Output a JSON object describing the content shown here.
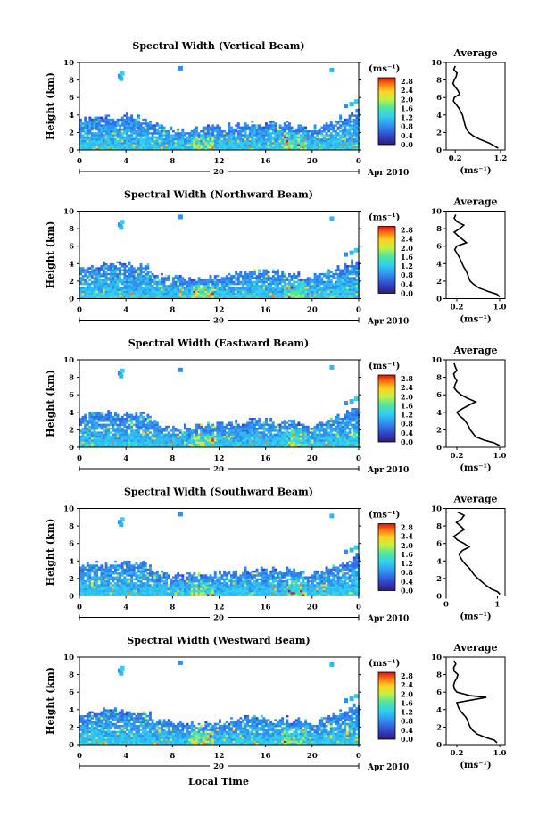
{
  "figure": {
    "xlabel": "Local Time",
    "ylabel": "Height (km)",
    "x_ticks": [
      "0",
      "4",
      "8",
      "12",
      "16",
      "20",
      "0"
    ],
    "y_ticks": [
      "0",
      "2",
      "4",
      "6",
      "8",
      "10"
    ],
    "date_day": "20",
    "date_label": "Apr 2010",
    "colorbar_unit": "(ms⁻¹)",
    "colorbar_ticks": [
      "0.0",
      "0.4",
      "0.8",
      "1.2",
      "1.6",
      "2.0",
      "2.4",
      "2.8"
    ],
    "avg_title": "Average",
    "avg_unit": "(ms⁻¹)"
  },
  "chart_data": [
    {
      "type": "heatmap",
      "title": "Spectral Width (Vertical Beam)",
      "xlabel": "",
      "ylabel": "Height (km)",
      "xlim": [
        0,
        24
      ],
      "ylim": [
        0,
        10
      ],
      "colorbar": {
        "range": [
          0.0,
          2.8
        ]
      },
      "avg_profile": {
        "ticks": [
          "0.2",
          "1.2"
        ],
        "xlim": [
          0.0,
          1.3
        ],
        "x": [
          1.15,
          1.05,
          0.95,
          0.75,
          0.6,
          0.5,
          0.45,
          0.42,
          0.4,
          0.38,
          0.36,
          0.32,
          0.28,
          0.22,
          0.16,
          0.18,
          0.3,
          0.26,
          0.2,
          0.15,
          0.18,
          0.22,
          0.24,
          0.17,
          0.2
        ],
        "y": [
          0.2,
          0.5,
          0.8,
          1.2,
          1.6,
          2.0,
          2.4,
          2.8,
          3.2,
          3.6,
          4.0,
          4.4,
          4.8,
          5.2,
          5.6,
          6.0,
          6.4,
          6.8,
          7.2,
          7.6,
          8.0,
          8.4,
          8.8,
          9.2,
          9.6
        ]
      }
    },
    {
      "type": "heatmap",
      "title": "Spectral Width (Northward Beam)",
      "xlabel": "",
      "ylabel": "Height (km)",
      "xlim": [
        0,
        24
      ],
      "ylim": [
        0,
        10
      ],
      "colorbar": {
        "range": [
          0.0,
          2.8
        ]
      },
      "avg_profile": {
        "ticks": [
          "0.2",
          "1.0"
        ],
        "xlim": [
          0.0,
          1.1
        ],
        "x": [
          1.0,
          0.95,
          0.8,
          0.62,
          0.52,
          0.45,
          0.42,
          0.4,
          0.37,
          0.33,
          0.3,
          0.27,
          0.24,
          0.2,
          0.16,
          0.2,
          0.38,
          0.3,
          0.22,
          0.15,
          0.25,
          0.33,
          0.2,
          0.15,
          0.18
        ],
        "y": [
          0.2,
          0.5,
          0.8,
          1.2,
          1.6,
          2.0,
          2.4,
          2.8,
          3.2,
          3.6,
          4.0,
          4.4,
          4.8,
          5.2,
          5.6,
          6.0,
          6.4,
          6.8,
          7.2,
          7.6,
          8.0,
          8.4,
          8.8,
          9.2,
          9.6
        ]
      }
    },
    {
      "type": "heatmap",
      "title": "Spectral Width (Eastward Beam)",
      "xlabel": "",
      "ylabel": "Height (km)",
      "xlim": [
        0,
        24
      ],
      "ylim": [
        0,
        10
      ],
      "colorbar": {
        "range": [
          0.0,
          2.8
        ]
      },
      "avg_profile": {
        "ticks": [
          "0.2",
          "1.0"
        ],
        "xlim": [
          0.0,
          1.1
        ],
        "x": [
          1.0,
          0.9,
          0.72,
          0.55,
          0.5,
          0.45,
          0.42,
          0.38,
          0.33,
          0.25,
          0.2,
          0.3,
          0.42,
          0.55,
          0.4,
          0.28,
          0.2,
          0.15,
          0.17,
          0.2,
          0.16,
          0.14,
          0.2,
          0.17,
          0.15
        ],
        "y": [
          0.2,
          0.5,
          0.8,
          1.2,
          1.6,
          2.0,
          2.4,
          2.8,
          3.2,
          3.6,
          4.0,
          4.4,
          4.8,
          5.2,
          5.6,
          6.0,
          6.4,
          6.8,
          7.2,
          7.6,
          8.0,
          8.4,
          8.8,
          9.2,
          9.6
        ]
      }
    },
    {
      "type": "heatmap",
      "title": "Spectral Width (Southward Beam)",
      "xlabel": "",
      "ylabel": "Height (km)",
      "xlim": [
        0,
        24
      ],
      "ylim": [
        0,
        10
      ],
      "colorbar": {
        "range": [
          0.0,
          2.8
        ]
      },
      "avg_profile": {
        "ticks": [
          "0",
          "1"
        ],
        "xlim": [
          0.0,
          1.15
        ],
        "x": [
          1.05,
          1.0,
          0.88,
          0.78,
          0.7,
          0.62,
          0.55,
          0.5,
          0.45,
          0.38,
          0.32,
          0.28,
          0.25,
          0.32,
          0.45,
          0.35,
          0.22,
          0.15,
          0.25,
          0.35,
          0.28,
          0.2,
          0.3,
          0.35,
          0.22
        ],
        "y": [
          0.2,
          0.5,
          0.8,
          1.2,
          1.6,
          2.0,
          2.4,
          2.8,
          3.2,
          3.6,
          4.0,
          4.4,
          4.8,
          5.2,
          5.6,
          6.0,
          6.4,
          6.8,
          7.2,
          7.6,
          8.0,
          8.4,
          8.8,
          9.2,
          9.6
        ]
      }
    },
    {
      "type": "heatmap",
      "title": "Spectral Width (Westward Beam)",
      "xlabel": "Local Time",
      "ylabel": "Height (km)",
      "xlim": [
        0,
        24
      ],
      "ylim": [
        0,
        10
      ],
      "colorbar": {
        "range": [
          0.0,
          2.8
        ]
      },
      "avg_profile": {
        "ticks": [
          "0.2",
          "1.0"
        ],
        "xlim": [
          0.0,
          1.1
        ],
        "x": [
          0.95,
          0.9,
          0.75,
          0.58,
          0.5,
          0.45,
          0.42,
          0.4,
          0.36,
          0.3,
          0.25,
          0.22,
          0.2,
          0.75,
          0.45,
          0.2,
          0.15,
          0.14,
          0.16,
          0.2,
          0.22,
          0.15,
          0.14,
          0.18,
          0.15
        ],
        "y": [
          0.2,
          0.5,
          0.8,
          1.2,
          1.6,
          2.0,
          2.4,
          2.8,
          3.2,
          3.6,
          4.0,
          4.4,
          4.8,
          5.4,
          5.6,
          6.0,
          6.4,
          6.8,
          7.2,
          7.6,
          8.0,
          8.4,
          8.8,
          9.2,
          9.6
        ]
      }
    }
  ]
}
